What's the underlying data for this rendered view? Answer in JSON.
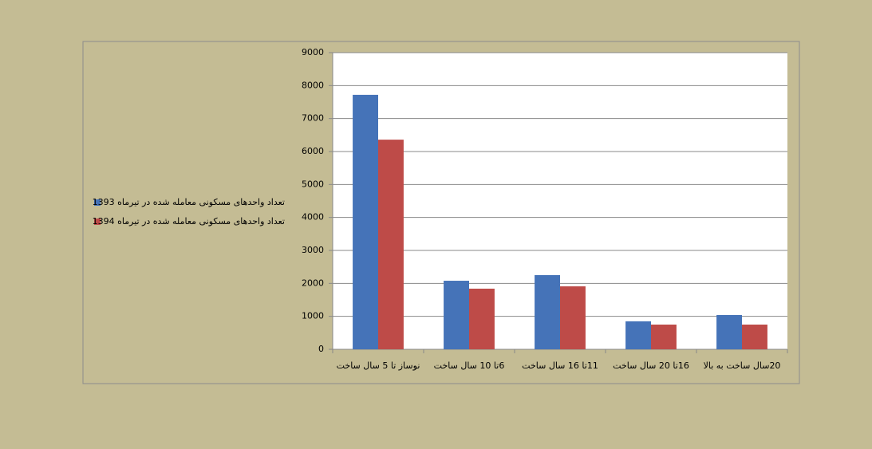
{
  "chart_data": {
    "type": "bar",
    "categories": [
      "نوساز تا 5 سال ساخت",
      "6تا 10 سال ساخت",
      "11تا 16 سال ساخت",
      "16تا 20 سال ساخت",
      "20سال ساخت به بالا"
    ],
    "series": [
      {
        "name": "تعداد واحدهای مسکونی معامله شده در تیرماه 1393",
        "color": "#4573b8",
        "values": [
          7720,
          2080,
          2250,
          850,
          1040
        ]
      },
      {
        "name": "تعداد واحدهای مسکونی معامله شده در تیرماه 1394",
        "color": "#be4b48",
        "values": [
          6360,
          1840,
          1910,
          750,
          750
        ]
      }
    ],
    "ylim": [
      0,
      9000
    ],
    "yticks": [
      0,
      1000,
      2000,
      3000,
      4000,
      5000,
      6000,
      7000,
      8000,
      9000
    ],
    "grid": true,
    "legend": "left"
  }
}
